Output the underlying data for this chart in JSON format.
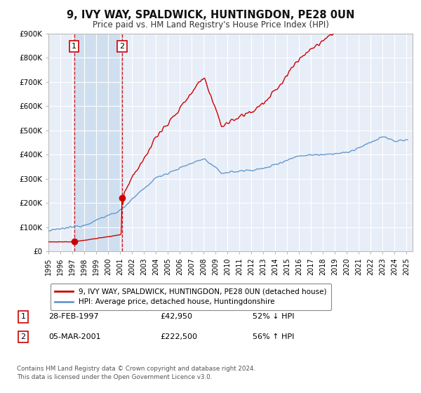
{
  "title": "9, IVY WAY, SPALDWICK, HUNTINGDON, PE28 0UN",
  "subtitle": "Price paid vs. HM Land Registry's House Price Index (HPI)",
  "sale1_date": 1997.16,
  "sale1_price": 42950,
  "sale1_label": "1",
  "sale1_display": "28-FEB-1997",
  "sale1_amount": "£42,950",
  "sale1_pct": "52% ↓ HPI",
  "sale2_date": 2001.18,
  "sale2_price": 222500,
  "sale2_label": "2",
  "sale2_display": "05-MAR-2001",
  "sale2_amount": "£222,500",
  "sale2_pct": "56% ↑ HPI",
  "legend1": "9, IVY WAY, SPALDWICK, HUNTINGDON, PE28 0UN (detached house)",
  "legend2": "HPI: Average price, detached house, Huntingdonshire",
  "footnote1": "Contains HM Land Registry data © Crown copyright and database right 2024.",
  "footnote2": "This data is licensed under the Open Government Licence v3.0.",
  "red_color": "#cc0000",
  "blue_color": "#6699cc",
  "shade_color": "#d0dff0",
  "background_color": "#ffffff",
  "plot_bg_color": "#e8eef8",
  "grid_color": "#ffffff",
  "ylim": [
    0,
    900000
  ],
  "xlim_start": 1995.0,
  "xlim_end": 2025.5
}
